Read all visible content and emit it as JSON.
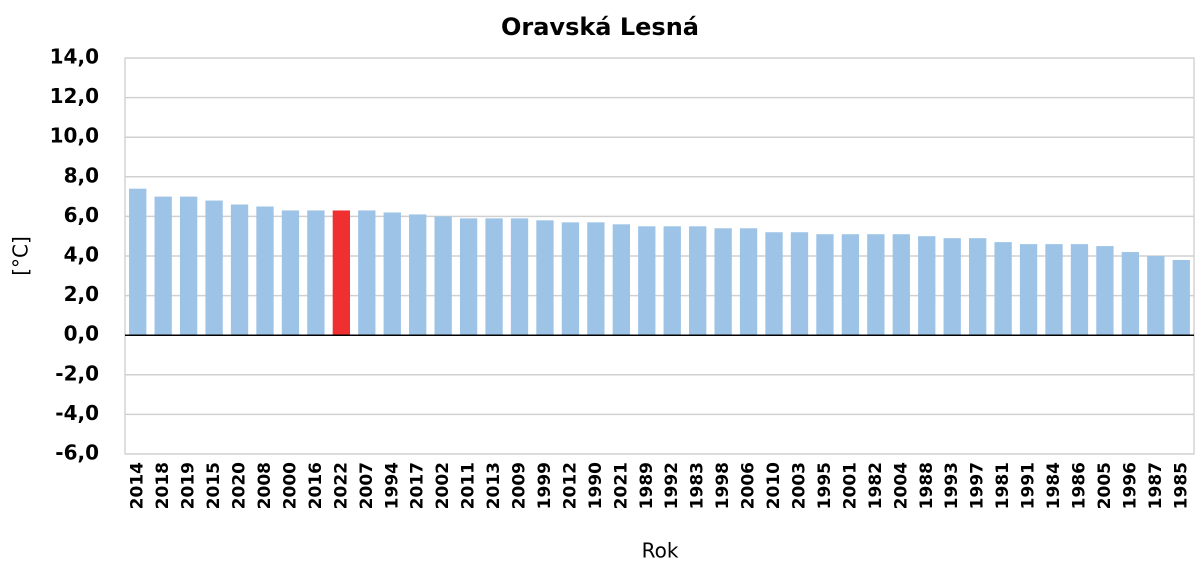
{
  "chart_data": {
    "type": "bar",
    "title": "Oravská Lesná",
    "x_label": "Rok",
    "y_label": "[°C]",
    "categories": [
      "2014",
      "2018",
      "2019",
      "2015",
      "2020",
      "2008",
      "2000",
      "2016",
      "2022",
      "2007",
      "1994",
      "2017",
      "2002",
      "2011",
      "2013",
      "2009",
      "1999",
      "2012",
      "1990",
      "2021",
      "1989",
      "1992",
      "1983",
      "1998",
      "2006",
      "2010",
      "2003",
      "1995",
      "2001",
      "1982",
      "2004",
      "1988",
      "1993",
      "1997",
      "1981",
      "1991",
      "1984",
      "1986",
      "2005",
      "1996",
      "1987",
      "1985"
    ],
    "values": [
      7.4,
      7.0,
      7.0,
      6.8,
      6.6,
      6.5,
      6.3,
      6.3,
      6.3,
      6.3,
      6.2,
      6.1,
      6.0,
      5.9,
      5.9,
      5.9,
      5.8,
      5.7,
      5.7,
      5.6,
      5.5,
      5.5,
      5.5,
      5.4,
      5.4,
      5.2,
      5.2,
      5.1,
      5.1,
      5.1,
      5.1,
      5.0,
      4.9,
      4.9,
      4.7,
      4.6,
      4.6,
      4.6,
      4.5,
      4.2,
      4.0,
      3.8
    ],
    "color": "#9dc3e6",
    "highlight": {
      "category": "2022",
      "color": "#f03030"
    },
    "ylim": [
      -6,
      14
    ],
    "yticks": [
      {
        "value": -6,
        "label": "-6,0"
      },
      {
        "value": -4,
        "label": "-4,0"
      },
      {
        "value": -2,
        "label": "-2,0"
      },
      {
        "value": 0,
        "label": "0,0"
      },
      {
        "value": 2,
        "label": "2,0"
      },
      {
        "value": 4,
        "label": "4,0"
      },
      {
        "value": 6,
        "label": "6,0"
      },
      {
        "value": 8,
        "label": "8,0"
      },
      {
        "value": 10,
        "label": "10,0"
      },
      {
        "value": 12,
        "label": "12,0"
      },
      {
        "value": 14,
        "label": "14,0"
      }
    ],
    "grid": true
  }
}
